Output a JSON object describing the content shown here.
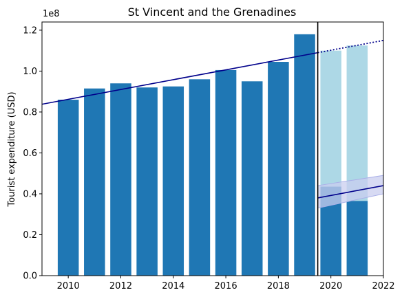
{
  "chart_data": {
    "type": "bar",
    "title": "St Vincent and the Grenadines",
    "xlabel": "",
    "ylabel": "Tourist expenditure (USD)",
    "y_multiplier_label": "1e8",
    "xlim": [
      2009,
      2022
    ],
    "ylim": [
      0,
      1.24
    ],
    "x_ticks": [
      2010,
      2012,
      2014,
      2016,
      2018,
      2020,
      2022
    ],
    "y_ticks": [
      0.0,
      0.2,
      0.4,
      0.6,
      0.8,
      1.0,
      1.2
    ],
    "x_tick_labels": [
      "2010",
      "2012",
      "2014",
      "2016",
      "2018",
      "2020",
      "2022"
    ],
    "y_tick_labels": [
      "0.0",
      "0.2",
      "0.4",
      "0.6",
      "0.8",
      "1.0",
      "1.2"
    ],
    "years": [
      2010,
      2011,
      2012,
      2013,
      2014,
      2015,
      2016,
      2017,
      2018,
      2019,
      2020,
      2021
    ],
    "actual": [
      0.86,
      0.915,
      0.94,
      0.92,
      0.925,
      0.96,
      1.005,
      0.95,
      1.045,
      1.18,
      0.435,
      0.365
    ],
    "counterfactual_years": [
      2020,
      2021
    ],
    "counterfactual": [
      1.1,
      1.125
    ],
    "trend": {
      "x": [
        2009,
        2019.5
      ],
      "y": [
        0.838,
        1.09
      ]
    },
    "trend_projection": {
      "x": [
        2019.5,
        2022
      ],
      "y": [
        1.09,
        1.15
      ]
    },
    "recovery_trend": {
      "x": [
        2019.5,
        2022
      ],
      "y": [
        0.38,
        0.44
      ]
    },
    "recovery_band": {
      "x": [
        2019.5,
        2022
      ],
      "upper": [
        0.44,
        0.49
      ],
      "lower": [
        0.33,
        0.4
      ]
    },
    "cutoff_x": 2019.5,
    "colors": {
      "actual": "#1f77b4",
      "counterfactual": "#add8e6",
      "trend": "#00008b",
      "band": "#c9cdef",
      "cutoff": "#000000"
    }
  }
}
